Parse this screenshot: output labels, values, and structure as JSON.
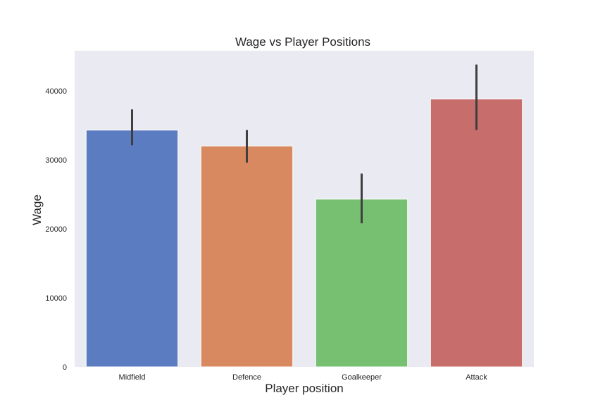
{
  "chart_data": {
    "type": "bar",
    "title": "Wage vs Player Positions",
    "xlabel": "Player position",
    "ylabel": "Wage",
    "categories": [
      "Midfield",
      "Defence",
      "Goalkeeper",
      "Attack"
    ],
    "values": [
      34300,
      32000,
      24300,
      38800
    ],
    "error_low": [
      32100,
      29600,
      20800,
      34300
    ],
    "error_high": [
      37300,
      34300,
      28000,
      43800
    ],
    "ylim": [
      0,
      45800
    ],
    "yticks": [
      0,
      10000,
      20000,
      30000,
      40000
    ],
    "ytick_labels": [
      "0",
      "10000",
      "20000",
      "30000",
      "40000"
    ],
    "colors": [
      "#5b7cc0",
      "#d8895f",
      "#77c072",
      "#c76d6b"
    ],
    "error_color": "#3f3f3f",
    "plot_background": "#eaeaf2",
    "grid": false,
    "legend": "none"
  }
}
